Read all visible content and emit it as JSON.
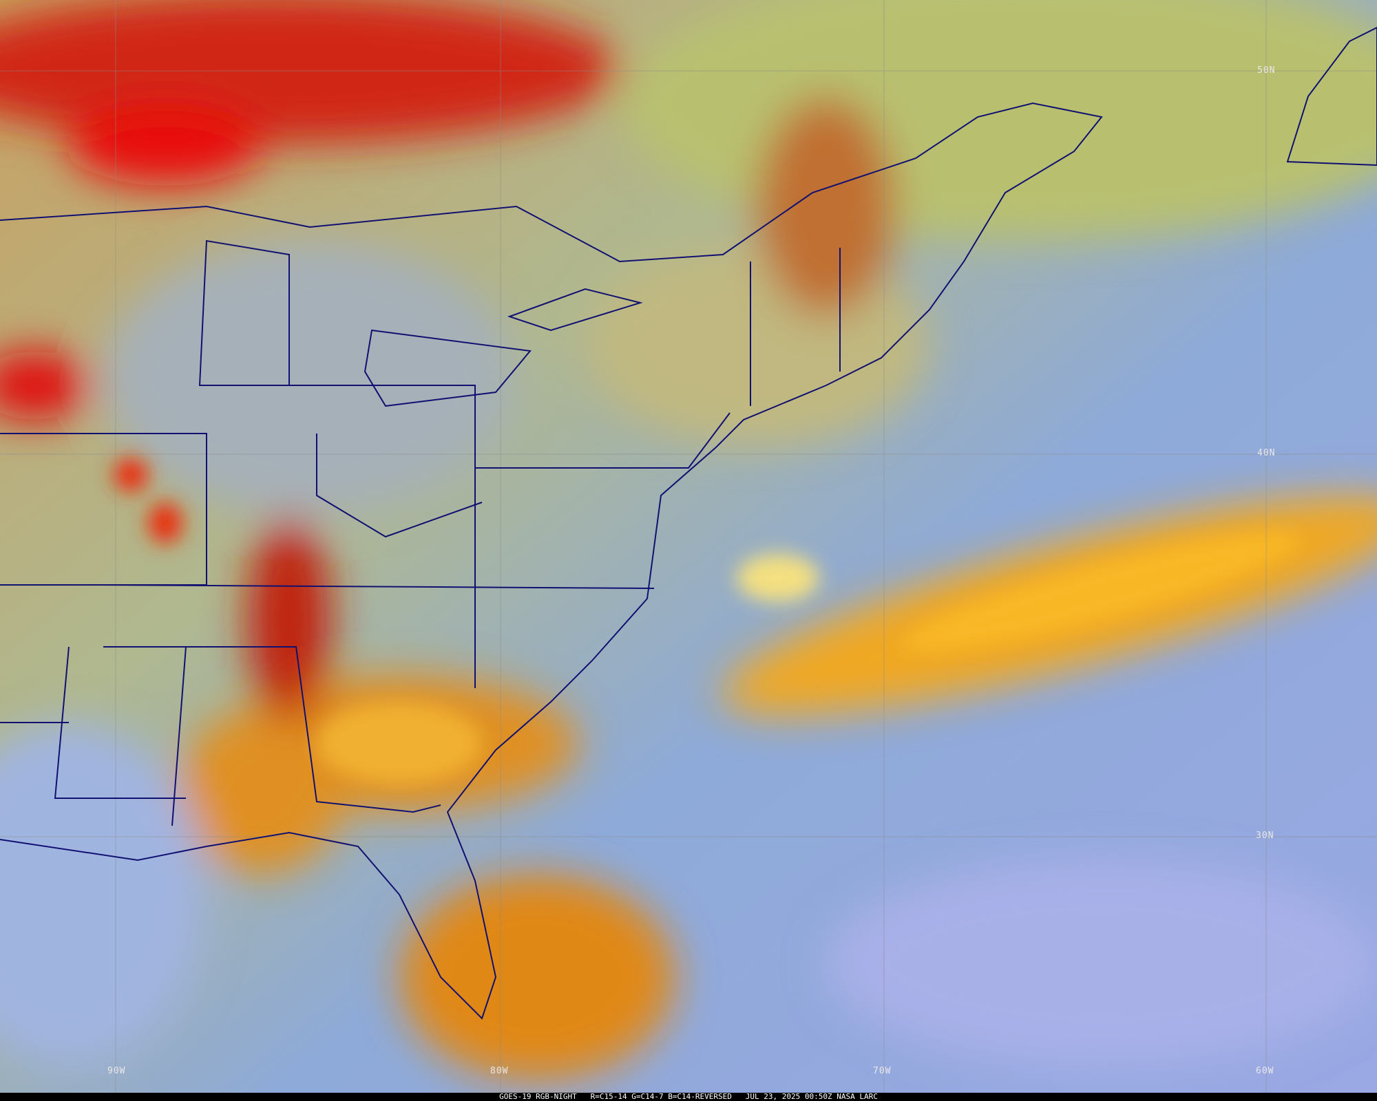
{
  "caption": "GOES-19 RGB-NIGHT   R=C15-14 G=C14-7 B=C14-REVERSED   JUL 23, 2025 00:50Z NASA LARC",
  "latitude_labels": [
    "50N",
    "40N",
    "30N"
  ],
  "longitude_labels": [
    "90W",
    "80W",
    "70W",
    "60W"
  ],
  "colors": {
    "clear_ocean": "#7f9fd8",
    "land_clear": "#b4b48c",
    "high_cloud": "#f0b020",
    "cold_cloud": "#e01818",
    "boundaries": "#101070"
  }
}
